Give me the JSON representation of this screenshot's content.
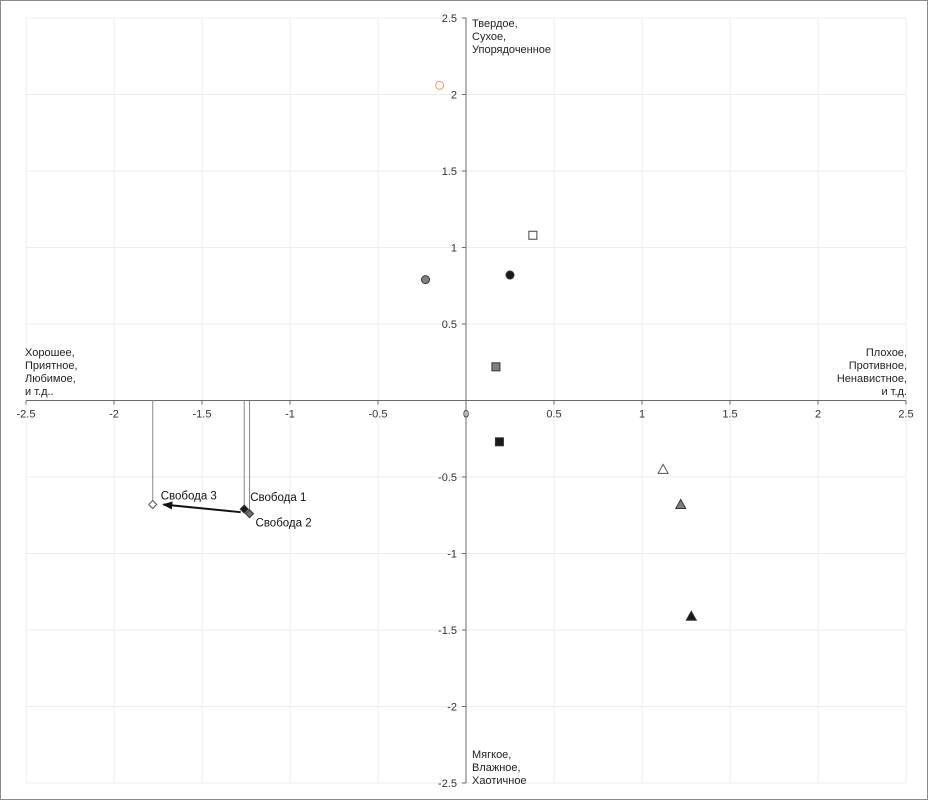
{
  "chart_data": {
    "type": "scatter",
    "title": "",
    "xlabel": "",
    "ylabel": "",
    "xlim": [
      -2.5,
      2.5
    ],
    "ylim": [
      -2.5,
      2.5
    ],
    "x_ticks": [
      "-2.5",
      "-2",
      "-1.5",
      "-1",
      "-0.5",
      "0",
      "0.5",
      "1",
      "1.5",
      "2",
      "2.5"
    ],
    "y_ticks": [
      "2.5",
      "2",
      "1.5",
      "1",
      "0.5",
      "-0.5",
      "-1",
      "-1.5",
      "-2",
      "-2.5"
    ],
    "grid": true,
    "quadrant_labels": {
      "top": [
        "Твердое,",
        "Сухое,",
        "Упорядоченное"
      ],
      "bottom": [
        "Мягкое,",
        "Влажное,",
        "Хаотичное"
      ],
      "left": [
        "Хорошее,",
        "Приятное,",
        "Любимое,",
        "и т.д.."
      ],
      "right": [
        "Плохое,",
        "Противное,",
        "Ненавистное,",
        "и т.д."
      ]
    },
    "points": [
      {
        "x": -0.15,
        "y": 2.06,
        "marker": "circle-open",
        "color": "#e8a070"
      },
      {
        "x": 0.38,
        "y": 1.08,
        "marker": "square-open",
        "color": "#444444"
      },
      {
        "x": 0.25,
        "y": 0.82,
        "marker": "circle",
        "color": "#1a1a1a"
      },
      {
        "x": -0.23,
        "y": 0.79,
        "marker": "circle",
        "color": "#808080"
      },
      {
        "x": 0.17,
        "y": 0.22,
        "marker": "square",
        "color": "#808080"
      },
      {
        "x": 0.19,
        "y": -0.27,
        "marker": "square",
        "color": "#1a1a1a"
      },
      {
        "x": 1.12,
        "y": -0.45,
        "marker": "triangle-open",
        "color": "#555555"
      },
      {
        "x": 1.22,
        "y": -0.68,
        "marker": "triangle",
        "color": "#808080"
      },
      {
        "x": 1.28,
        "y": -1.41,
        "marker": "triangle",
        "color": "#1a1a1a"
      },
      {
        "x": -1.26,
        "y": -0.71,
        "marker": "diamond",
        "color": "#1a1a1a",
        "label": "Свобода 1"
      },
      {
        "x": -1.23,
        "y": -0.74,
        "marker": "diamond",
        "color": "#707070",
        "label": "Свобода 2"
      },
      {
        "x": -1.78,
        "y": -0.68,
        "marker": "diamond-open",
        "color": "#555555",
        "label": "Свобода 3"
      }
    ],
    "arrow": {
      "from": [
        -1.28,
        -0.73
      ],
      "to": [
        -1.72,
        -0.68
      ]
    }
  }
}
